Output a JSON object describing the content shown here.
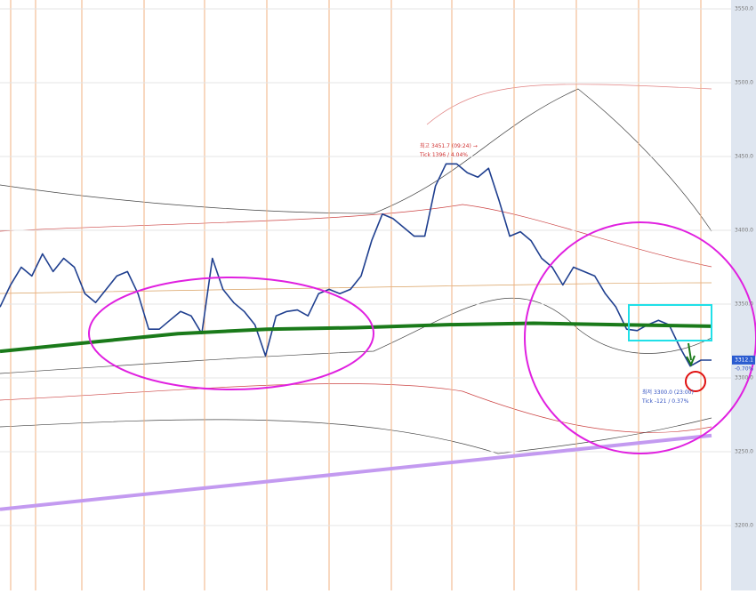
{
  "chart_data": {
    "type": "line",
    "ylim": [
      3156,
      3556
    ],
    "yticks": [
      {
        "value": 3550,
        "label": "3550.0"
      },
      {
        "value": 3500,
        "label": "3500.0"
      },
      {
        "value": 3450,
        "label": "3450.0"
      },
      {
        "value": 3400,
        "label": "3400.0"
      },
      {
        "value": 3350,
        "label": "3350.0"
      },
      {
        "value": 3300,
        "label": "3300.0"
      },
      {
        "value": 3250,
        "label": "3250.0"
      },
      {
        "value": 3200,
        "label": "3200.0"
      }
    ],
    "grid": true,
    "series": [
      {
        "color": "#1f3f8f",
        "width": 1.6,
        "values": [
          3348,
          3363,
          3375,
          3369,
          3384,
          3372,
          3381,
          3375,
          3357,
          3351,
          3360,
          3369,
          3372,
          3357,
          3333,
          3333,
          3339,
          3345,
          3342,
          3330,
          3381,
          3360,
          3351,
          3345,
          3336,
          3315,
          3342,
          3345,
          3346,
          3342,
          3357,
          3360,
          3357,
          3360,
          3369,
          3393,
          3411,
          3408,
          3402,
          3396,
          3396,
          3430,
          3445,
          3445,
          3439,
          3436,
          3442,
          3420,
          3396,
          3399,
          3393,
          3381,
          3375,
          3363,
          3375,
          3372,
          3369,
          3357,
          3348,
          3333,
          3332,
          3336,
          3339,
          3336,
          3321,
          3308,
          3312,
          3312
        ]
      },
      {
        "color": "#1a7a1a",
        "width": 4,
        "values": [
          3318,
          3324,
          3330,
          3333,
          3334,
          3336,
          3337,
          3336,
          3335
        ]
      },
      {
        "color": "#c39af0",
        "width": 4,
        "values": [
          3211,
          3261
        ]
      }
    ],
    "annotations": [
      {
        "text": "최고 3451.7 (09:24) →",
        "value": 3457
      },
      {
        "text": "Tick 1396 / 4.04%",
        "value": 3451
      },
      {
        "text": "최저 3300.0 (23:00)",
        "value": 3290
      },
      {
        "text": "Tick -121 / 0.37%",
        "value": 3284
      }
    ],
    "last_price": {
      "label": "3312.1",
      "value": 3312.1,
      "change": "-0.70%"
    }
  }
}
